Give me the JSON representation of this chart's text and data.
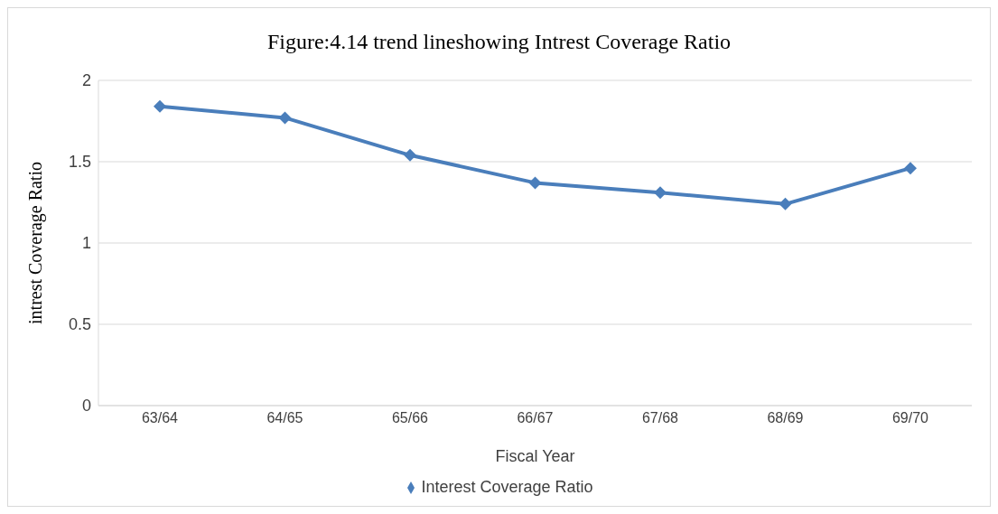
{
  "chart_data": {
    "type": "line",
    "title": "Figure:4.14 trend lineshowing Intrest Coverage Ratio",
    "xlabel": "Fiscal Year",
    "ylabel": "intrest Coverage Ratio",
    "categories": [
      "63/64",
      "64/65",
      "65/66",
      "66/67",
      "67/68",
      "68/69",
      "69/70"
    ],
    "series": [
      {
        "name": "Interest Coverage Ratio",
        "color": "#4a7ebb",
        "values": [
          1.84,
          1.77,
          1.54,
          1.37,
          1.31,
          1.24,
          1.46
        ]
      }
    ],
    "ylim": [
      0,
      2
    ],
    "yticks": [
      0,
      0.5,
      1,
      1.5,
      2
    ],
    "grid": "y",
    "legend": "bottom",
    "marker": "diamond",
    "line_style": "solid"
  }
}
